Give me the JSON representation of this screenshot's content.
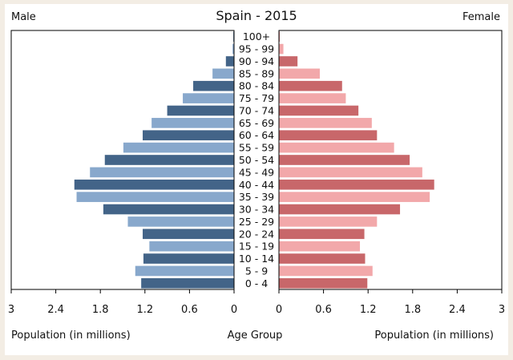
{
  "chart_data": {
    "type": "bar",
    "title": "Spain - 2015",
    "left_label": "Male",
    "right_label": "Female",
    "center_xlabel": "Age Group",
    "left_xlabel": "Population (in millions)",
    "right_xlabel": "Population (in millions)",
    "xlim": [
      0,
      3
    ],
    "x_ticks": [
      "3",
      "2.4",
      "1.8",
      "1.2",
      "0.6",
      "0",
      "0",
      "0.6",
      "1.2",
      "1.8",
      "2.4",
      "3"
    ],
    "categories": [
      "100+",
      "95 - 99",
      "90 - 94",
      "85 - 89",
      "80 - 84",
      "75 - 79",
      "70 - 74",
      "65 - 69",
      "60 - 64",
      "55 - 59",
      "50 - 54",
      "45 - 49",
      "40 - 44",
      "35 - 39",
      "30 - 34",
      "25 - 29",
      "20 - 24",
      "15 - 19",
      "10 - 14",
      "5 - 9",
      "0 - 4"
    ],
    "series": [
      {
        "name": "Male",
        "values": [
          0.01,
          0.02,
          0.11,
          0.29,
          0.55,
          0.69,
          0.9,
          1.11,
          1.23,
          1.49,
          1.74,
          1.94,
          2.15,
          2.12,
          1.76,
          1.43,
          1.23,
          1.14,
          1.22,
          1.33,
          1.25
        ],
        "colors": [
          "#436488",
          "#88a8cc"
        ]
      },
      {
        "name": "Female",
        "values": [
          0.01,
          0.06,
          0.25,
          0.55,
          0.85,
          0.9,
          1.07,
          1.25,
          1.32,
          1.55,
          1.76,
          1.93,
          2.09,
          2.03,
          1.63,
          1.32,
          1.15,
          1.09,
          1.16,
          1.26,
          1.19
        ],
        "colors": [
          "#c8676a",
          "#f2a8aa"
        ]
      }
    ]
  }
}
